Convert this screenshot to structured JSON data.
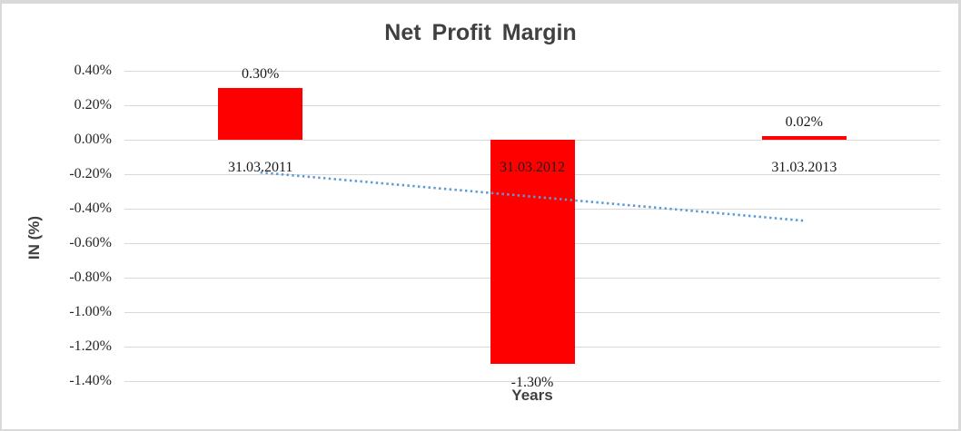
{
  "frame": {
    "background_color": "#FFFFFF",
    "border_color": "#D9D9D9"
  },
  "chart_data": {
    "type": "bar",
    "title": "Net Profit Margin",
    "xlabel": "Years",
    "ylabel": "IN (%)",
    "categories": [
      "31.03.2011",
      "31.03.2012",
      "31.03.2013"
    ],
    "values": [
      0.3,
      -1.3,
      0.02
    ],
    "data_labels": [
      "0.30%",
      "-1.30%",
      "0.02%"
    ],
    "bar_color": "#FF0000",
    "ylim": [
      -1.4,
      0.4
    ],
    "ytick_step": 0.2,
    "ytick_labels": [
      "0.40%",
      "0.20%",
      "0.00%",
      "-0.20%",
      "-0.40%",
      "-0.60%",
      "-0.80%",
      "-1.00%",
      "-1.20%",
      "-1.40%"
    ],
    "grid": true,
    "gridline_color": "#D9D9D9",
    "legend": "none",
    "trendline": {
      "type": "linear",
      "style": "dotted",
      "color": "#5B9BD5",
      "start_value": -0.19,
      "end_value": -0.47
    }
  }
}
